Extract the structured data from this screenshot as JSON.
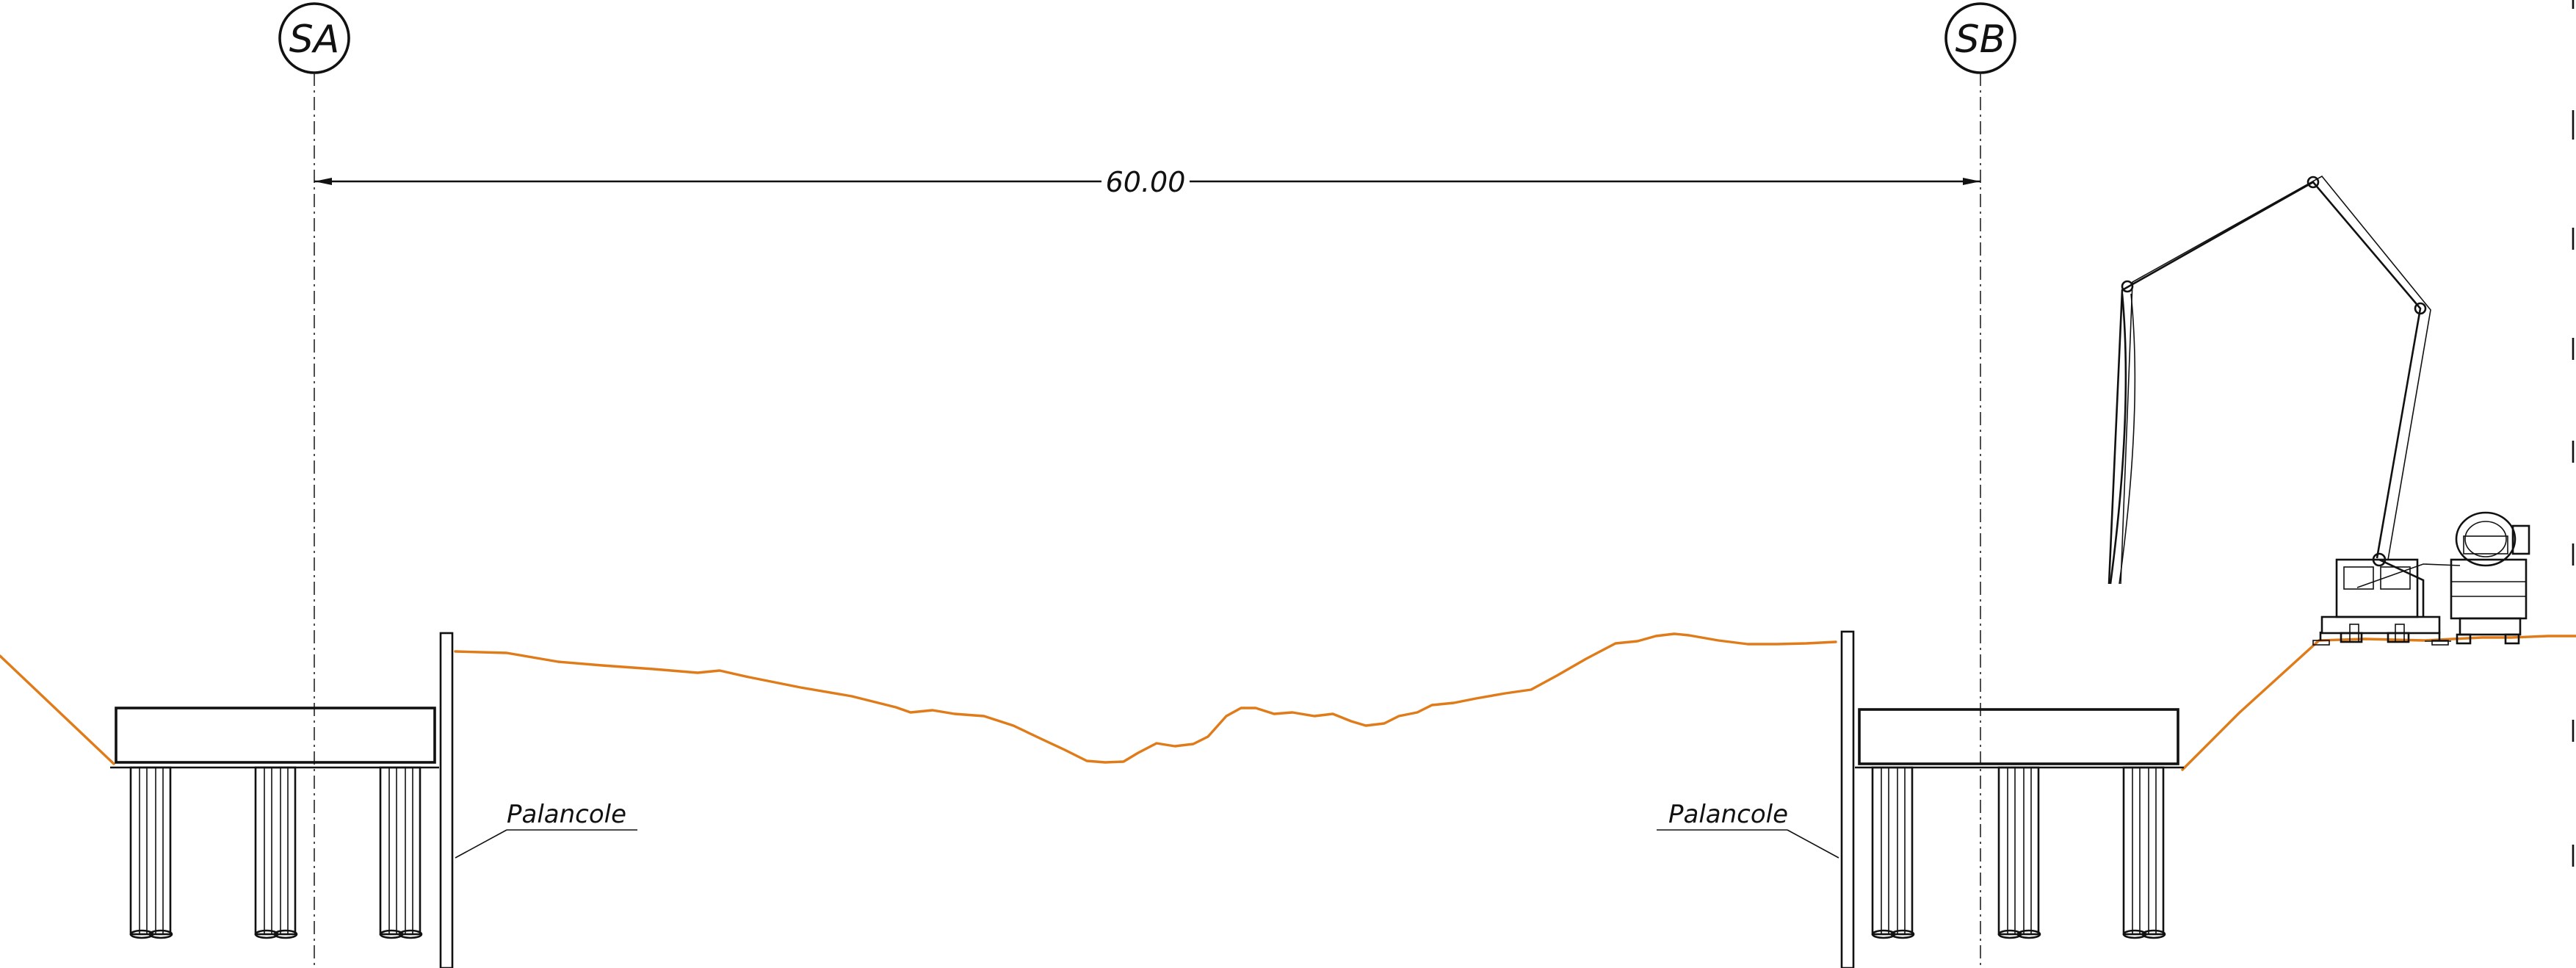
{
  "axes": {
    "left": {
      "label": "SA"
    },
    "right": {
      "label": "SB"
    }
  },
  "dimension": {
    "label": "60.00"
  },
  "annotations": {
    "left_sheet_pile": "Palancole",
    "right_sheet_pile": "Palancole"
  },
  "colors": {
    "line": "#111111",
    "terrain": "#e07b1a",
    "concrete_fill": "#f2f2f2"
  },
  "icons": {
    "equipment": "concrete-pump-truck-icon",
    "mixer": "concrete-mixer-truck-icon"
  }
}
